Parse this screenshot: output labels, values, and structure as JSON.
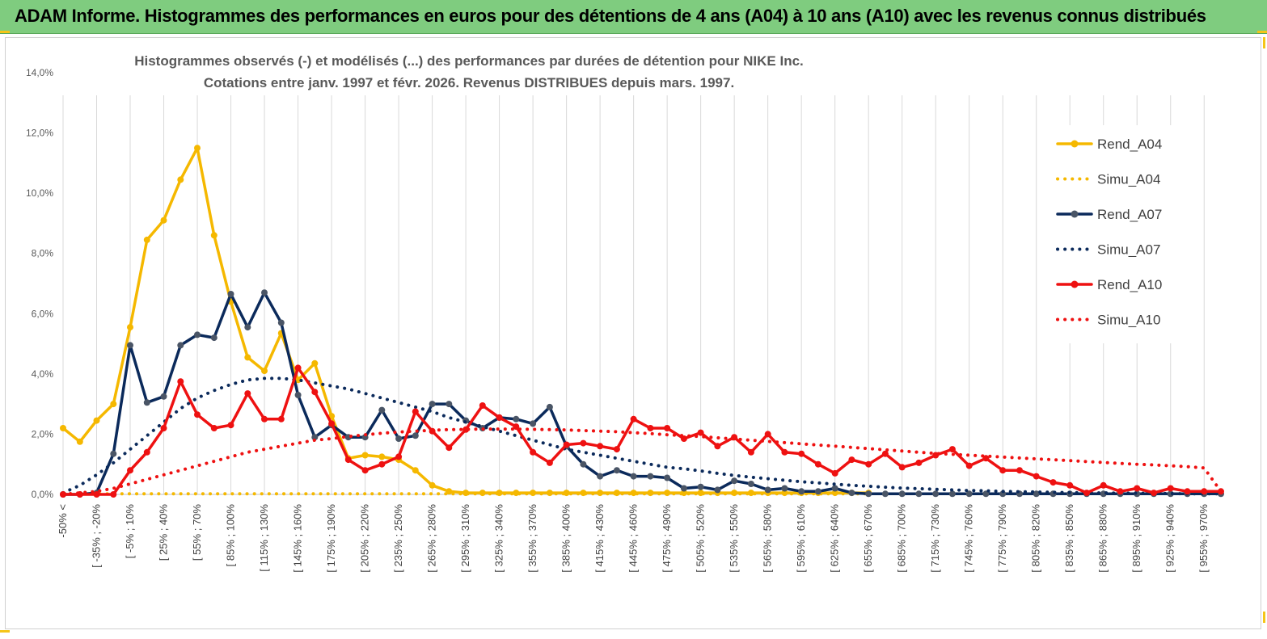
{
  "banner": {
    "title": "ADAM Informe. Histogrammes des performances en euros pour des détentions de 4 ans (A04) à 10 ans (A10) avec les revenus connus distribués"
  },
  "colors": {
    "banner_bg": "#7fcc7f",
    "accent_corner": "#f5c518",
    "A04": "#f5b800",
    "A07": "#0b2a5b",
    "A07_marker": "#4a5566",
    "A10": "#ee1111"
  },
  "chart_data": {
    "type": "line",
    "title_line1": "Histogrammes observés (-) et modélisés (...) des performances par durées de détention pour NIKE Inc.",
    "title_line2": "Cotations entre janv. 1997 et févr. 2026. Revenus DISTRIBUES depuis mars. 1997.",
    "ylim": [
      0,
      14
    ],
    "y_ticks": [
      "0,0%",
      "2,0%",
      "4,0%",
      "6,0%",
      "8,0%",
      "10,0%",
      "12,0%",
      "14,0%"
    ],
    "y_tick_values": [
      0,
      2,
      4,
      6,
      8,
      10,
      12,
      14
    ],
    "grid": "vertical",
    "legend_position": "right",
    "x_tick_labels": [
      "-50% <",
      "[ -35% ; -20%",
      "[ -5% ; 10%",
      "[ 25% ; 40%",
      "[ 55% ; 70%",
      "[ 85% ; 100%",
      "[ 115% ; 130%",
      "[ 145% ; 160%",
      "[ 175% ; 190%",
      "[ 205% ; 220%",
      "[ 235% ; 250%",
      "[ 265% ; 280%",
      "[ 295% ; 310%",
      "[ 325% ; 340%",
      "[ 355% ; 370%",
      "[ 385% ; 400%",
      "[ 415% ; 430%",
      "[ 445% ; 460%",
      "[ 475% ; 490%",
      "[ 505% ; 520%",
      "[ 535% ; 550%",
      "[ 565% ; 580%",
      "[ 595% ; 610%",
      "[ 625% ; 640%",
      "[ 655% ; 670%",
      "[ 685% ; 700%",
      "[ 715% ; 730%",
      "[ 745% ; 760%",
      "[ 775% ; 790%",
      "[ 805% ; 820%",
      "[ 835% ; 850%",
      "[ 865% ; 880%",
      "[ 895% ; 910%",
      "[ 925% ; 940%",
      "[ 955% ; 970%"
    ],
    "series": [
      {
        "name": "Rend_A04",
        "style": "solid",
        "color": "#f5b800",
        "values": [
          2.2,
          1.75,
          2.45,
          3.0,
          5.55,
          8.45,
          9.1,
          10.45,
          11.5,
          8.6,
          6.4,
          4.55,
          4.1,
          5.35,
          3.8,
          4.35,
          2.6,
          1.2,
          1.3,
          1.25,
          1.15,
          0.8,
          0.3,
          0.1,
          0.05,
          0.05,
          0.05,
          0.05,
          0.05,
          0.05,
          0.05,
          0.05,
          0.05,
          0.05,
          0.05,
          0.05,
          0.05,
          0.05,
          0.05,
          0.05,
          0.05,
          0.05,
          0.05,
          0.05,
          0.05,
          0.05,
          0.05,
          0.05,
          0.05
        ]
      },
      {
        "name": "Simu_A04",
        "style": "dotted",
        "color": "#f5b800",
        "values": [
          0.02,
          0.02,
          0.02,
          0.02,
          0.02,
          0.02,
          0.02,
          0.02,
          0.02,
          0.02,
          0.02,
          0.02,
          0.02,
          0.02,
          0.02,
          0.02,
          0.02,
          0.02,
          0.02,
          0.02,
          0.02,
          0.02,
          0.02,
          0.02,
          0.02,
          0.02,
          0.02,
          0.02,
          0.02,
          0.02,
          0.02,
          0.02,
          0.02,
          0.02,
          0.02,
          0.02,
          0.02,
          0.02,
          0.02,
          0.02,
          0.02,
          0.02,
          0.02,
          0.02,
          0.02,
          0.02,
          0.02,
          0.02,
          0.02
        ]
      },
      {
        "name": "Rend_A07",
        "style": "solid",
        "color": "#0b2a5b",
        "values": [
          0.0,
          0.0,
          0.05,
          1.35,
          4.95,
          3.05,
          3.25,
          4.95,
          5.3,
          5.2,
          6.65,
          5.55,
          6.7,
          5.7,
          3.3,
          1.9,
          2.3,
          1.9,
          1.9,
          2.8,
          1.85,
          1.95,
          3.0,
          3.0,
          2.45,
          2.2,
          2.55,
          2.5,
          2.35,
          2.9,
          1.6,
          1.0,
          0.6,
          0.8,
          0.6,
          0.6,
          0.55,
          0.2,
          0.25,
          0.15,
          0.45,
          0.35,
          0.15,
          0.2,
          0.1,
          0.1,
          0.2,
          0.05,
          0.02,
          0.02,
          0.02,
          0.02,
          0.02,
          0.02,
          0.02,
          0.02,
          0.02,
          0.02,
          0.02,
          0.02,
          0.02,
          0.02,
          0.02,
          0.02,
          0.02,
          0.02,
          0.02,
          0.02,
          0.02,
          0.02
        ]
      },
      {
        "name": "Simu_A07",
        "style": "dotted",
        "color": "#0b2a5b",
        "values": [
          0.05,
          0.3,
          0.65,
          1.05,
          1.5,
          1.95,
          2.4,
          2.85,
          3.2,
          3.45,
          3.65,
          3.8,
          3.85,
          3.85,
          3.8,
          3.7,
          3.6,
          3.5,
          3.35,
          3.2,
          3.05,
          2.9,
          2.75,
          2.55,
          2.4,
          2.25,
          2.1,
          1.95,
          1.8,
          1.65,
          1.5,
          1.4,
          1.3,
          1.2,
          1.1,
          1.0,
          0.9,
          0.85,
          0.78,
          0.7,
          0.63,
          0.57,
          0.52,
          0.47,
          0.42,
          0.38,
          0.34,
          0.3,
          0.27,
          0.24,
          0.21,
          0.19,
          0.17,
          0.15,
          0.13,
          0.12,
          0.1,
          0.09,
          0.08,
          0.07,
          0.06,
          0.05,
          0.05,
          0.04,
          0.04,
          0.03,
          0.03,
          0.02,
          0.02,
          0.02
        ]
      },
      {
        "name": "Rend_A10",
        "style": "solid",
        "color": "#ee1111",
        "values": [
          0.0,
          0.0,
          0.0,
          0.0,
          0.8,
          1.4,
          2.2,
          3.75,
          2.65,
          2.2,
          2.3,
          3.35,
          2.5,
          2.5,
          4.2,
          3.4,
          2.35,
          1.15,
          0.8,
          1.0,
          1.25,
          2.75,
          2.1,
          1.55,
          2.15,
          2.95,
          2.55,
          2.25,
          1.4,
          1.05,
          1.65,
          1.7,
          1.6,
          1.5,
          2.5,
          2.2,
          2.2,
          1.85,
          2.05,
          1.6,
          1.9,
          1.4,
          2.0,
          1.4,
          1.35,
          1.0,
          0.7,
          1.15,
          1.0,
          1.35,
          0.9,
          1.05,
          1.3,
          1.5,
          0.95,
          1.2,
          0.8,
          0.8,
          0.6,
          0.4,
          0.3,
          0.05,
          0.3,
          0.1,
          0.2,
          0.05,
          0.2,
          0.1,
          0.1,
          0.1
        ]
      },
      {
        "name": "Simu_A10",
        "style": "dotted",
        "color": "#ee1111",
        "values": [
          0.0,
          0.05,
          0.1,
          0.2,
          0.35,
          0.5,
          0.65,
          0.8,
          0.95,
          1.1,
          1.25,
          1.4,
          1.5,
          1.6,
          1.7,
          1.8,
          1.85,
          1.92,
          1.98,
          2.03,
          2.07,
          2.1,
          2.13,
          2.15,
          2.16,
          2.17,
          2.17,
          2.17,
          2.16,
          2.15,
          2.14,
          2.12,
          2.1,
          2.08,
          2.05,
          2.02,
          1.98,
          1.95,
          1.92,
          1.88,
          1.84,
          1.8,
          1.76,
          1.72,
          1.68,
          1.64,
          1.6,
          1.56,
          1.52,
          1.48,
          1.44,
          1.4,
          1.36,
          1.33,
          1.3,
          1.27,
          1.24,
          1.21,
          1.18,
          1.15,
          1.12,
          1.09,
          1.06,
          1.03,
          1.0,
          0.98,
          0.95,
          0.92,
          0.88,
          0.1
        ]
      }
    ]
  }
}
